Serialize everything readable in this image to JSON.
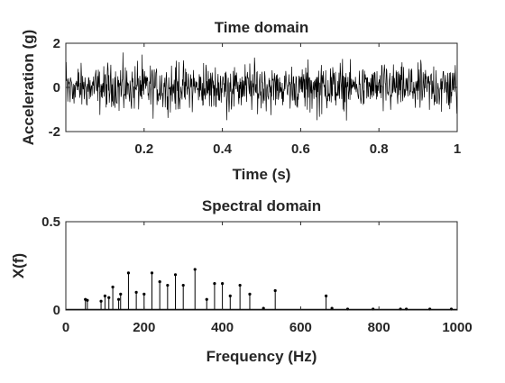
{
  "chart_data": [
    {
      "type": "line",
      "title": "Time domain",
      "xlabel": "Time (s)",
      "ylabel": "Acceleration (g)",
      "xlim": [
        0,
        1
      ],
      "ylim": [
        -2,
        2
      ],
      "xticks": [
        0.2,
        0.4,
        0.6,
        0.8,
        1
      ],
      "xtick_labels": [
        "0.2",
        "0.4",
        "0.6",
        "0.8",
        "1"
      ],
      "yticks": [
        -2,
        0,
        2
      ],
      "ytick_labels": [
        "-2",
        "0",
        "2"
      ],
      "grid": false,
      "legend": "none",
      "signal": {
        "samples": 1000,
        "amplitude_range": [
          -1.6,
          1.7
        ],
        "color": "#000000"
      }
    },
    {
      "type": "stem",
      "title": "Spectral domain",
      "xlabel": "Frequency (Hz)",
      "ylabel": "X(f)",
      "xlim": [
        0,
        1000
      ],
      "ylim": [
        0,
        0.5
      ],
      "xticks": [
        0,
        200,
        400,
        600,
        800,
        1000
      ],
      "xtick_labels": [
        "0",
        "200",
        "400",
        "600",
        "800",
        "1000"
      ],
      "yticks": [
        0,
        0.5
      ],
      "ytick_labels": [
        "0",
        "0.5"
      ],
      "grid": false,
      "legend": "none",
      "color": "#000000",
      "peaks": [
        {
          "x": 50,
          "y": 0.06
        },
        {
          "x": 55,
          "y": 0.055
        },
        {
          "x": 90,
          "y": 0.05
        },
        {
          "x": 100,
          "y": 0.08
        },
        {
          "x": 110,
          "y": 0.07
        },
        {
          "x": 120,
          "y": 0.13
        },
        {
          "x": 135,
          "y": 0.06
        },
        {
          "x": 140,
          "y": 0.09
        },
        {
          "x": 160,
          "y": 0.21
        },
        {
          "x": 180,
          "y": 0.1
        },
        {
          "x": 200,
          "y": 0.09
        },
        {
          "x": 220,
          "y": 0.21
        },
        {
          "x": 240,
          "y": 0.16
        },
        {
          "x": 260,
          "y": 0.14
        },
        {
          "x": 280,
          "y": 0.2
        },
        {
          "x": 300,
          "y": 0.14
        },
        {
          "x": 330,
          "y": 0.23
        },
        {
          "x": 360,
          "y": 0.06
        },
        {
          "x": 380,
          "y": 0.15
        },
        {
          "x": 400,
          "y": 0.15
        },
        {
          "x": 420,
          "y": 0.08
        },
        {
          "x": 445,
          "y": 0.14
        },
        {
          "x": 470,
          "y": 0.09
        },
        {
          "x": 505,
          "y": 0.01
        },
        {
          "x": 535,
          "y": 0.11
        },
        {
          "x": 665,
          "y": 0.08
        },
        {
          "x": 680,
          "y": 0.01
        },
        {
          "x": 720,
          "y": 0.005
        },
        {
          "x": 785,
          "y": 0.005
        },
        {
          "x": 855,
          "y": 0.005
        },
        {
          "x": 870,
          "y": 0.005
        },
        {
          "x": 930,
          "y": 0.005
        },
        {
          "x": 985,
          "y": 0.005
        }
      ]
    }
  ]
}
